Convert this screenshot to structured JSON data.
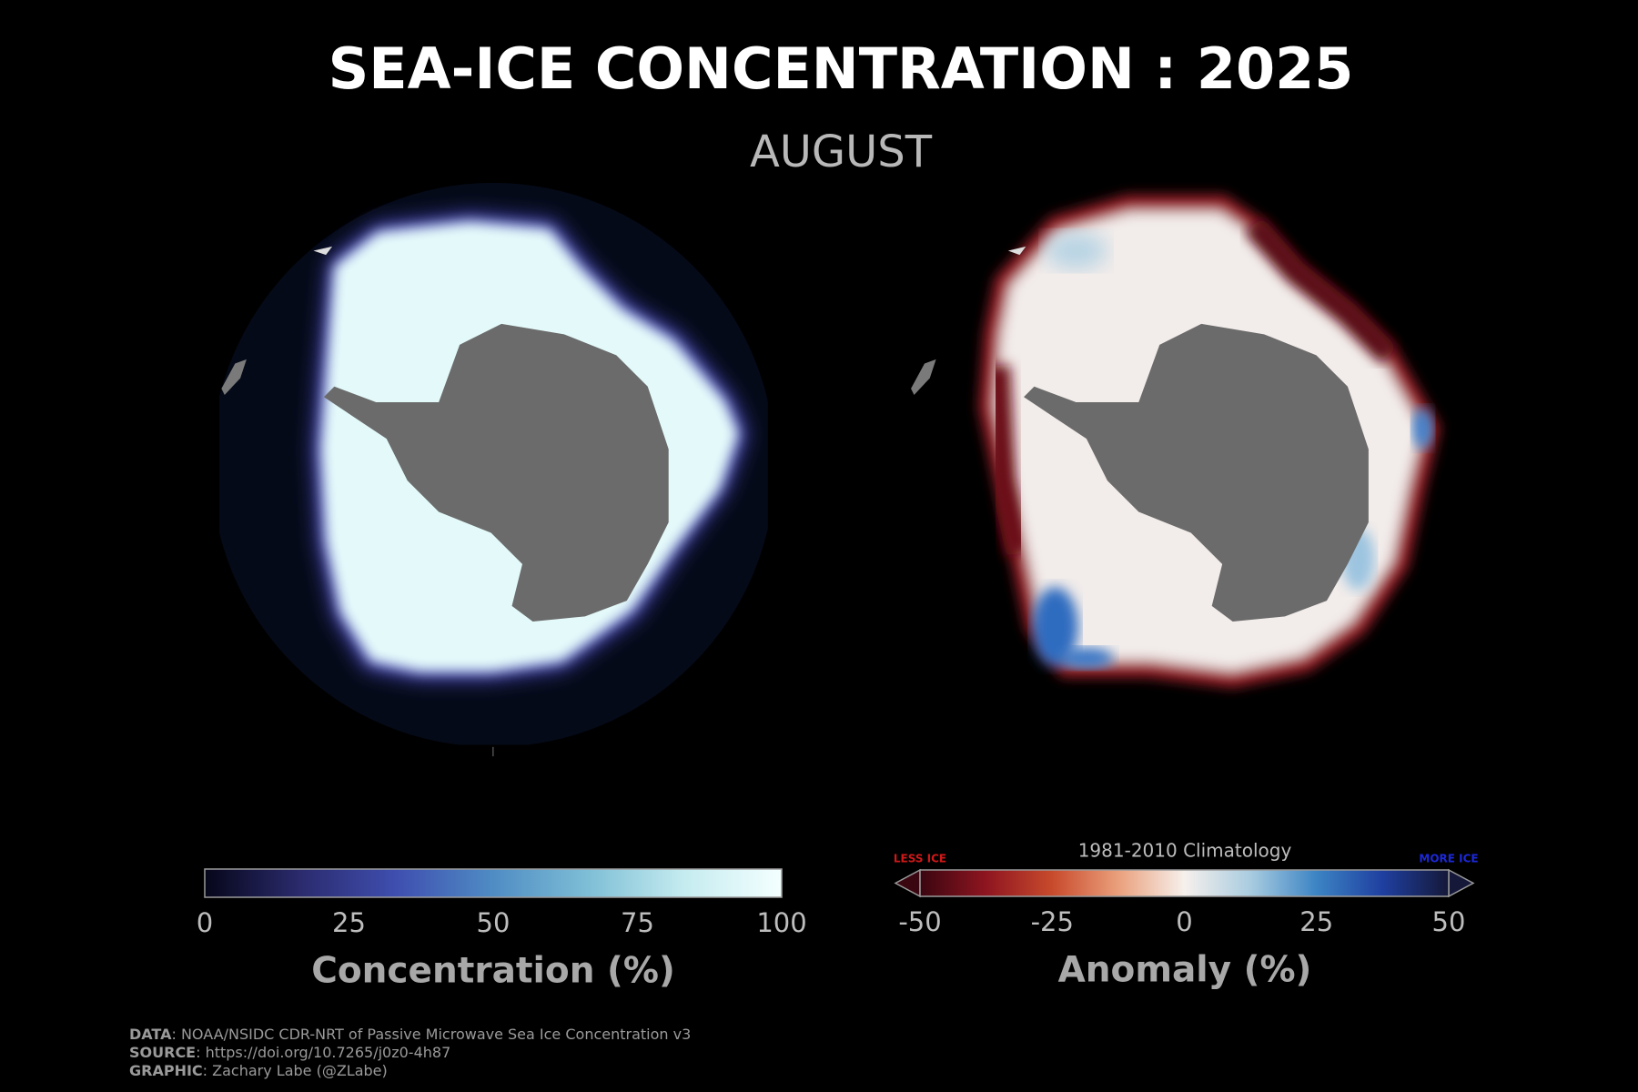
{
  "header": {
    "title": "SEA-ICE CONCENTRATION : 2025",
    "subtitle": "AUGUST"
  },
  "colorbars": [
    {
      "label": "Concentration (%)",
      "lim": [
        0,
        100
      ],
      "ticks": [
        0,
        25,
        50,
        75,
        100
      ],
      "colors": [
        "#06061a",
        "#2b2b6e",
        "#3f4fb0",
        "#4f8cc4",
        "#7fbfd6",
        "#c6ecf0",
        "#f4ffff"
      ]
    },
    {
      "label": "Anomaly (%)",
      "lim": [
        -50,
        50
      ],
      "ticks": [
        -50,
        -25,
        0,
        25,
        50
      ],
      "reference": "1981-2010 Climatology",
      "low_end": "LESS ICE",
      "high_end": "MORE ICE",
      "colors": [
        "#3a0610",
        "#8e1520",
        "#c84a2c",
        "#eaa07c",
        "#f6f0ec",
        "#a9cce0",
        "#3c84c4",
        "#1f3fa0",
        "#151838"
      ]
    }
  ],
  "credits": [
    {
      "key": "DATA",
      "text": ": NOAA/NSIDC CDR-NRT of Passive Microwave Sea Ice Concentration v3"
    },
    {
      "key": "SOURCE",
      "text": ": https://doi.org/10.7265/j0z0-4h87"
    },
    {
      "key": "GRAPHIC",
      "text": ": Zachary Labe (@ZLabe)"
    }
  ]
}
